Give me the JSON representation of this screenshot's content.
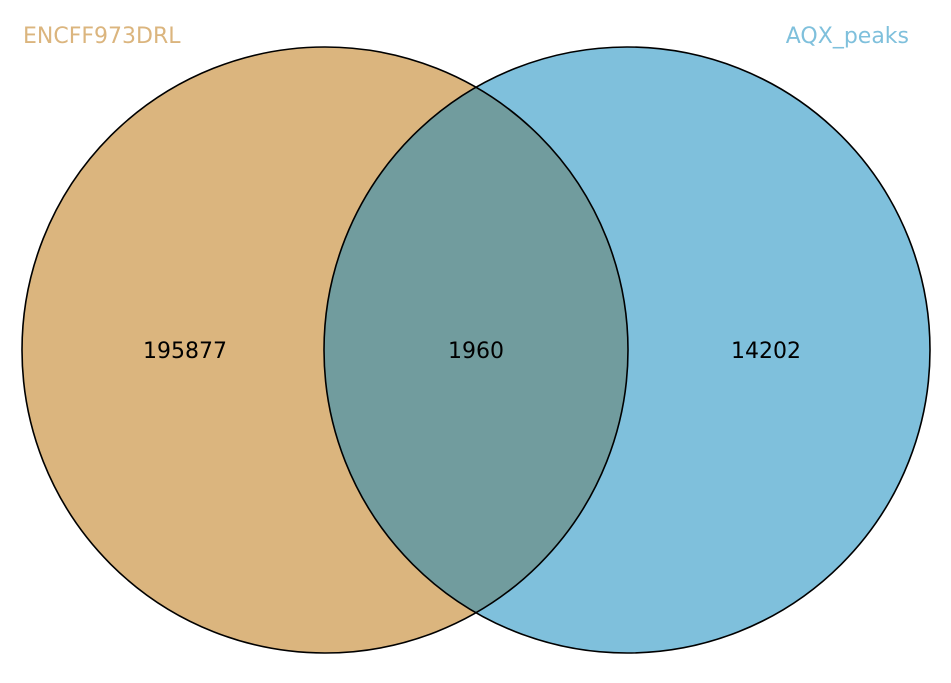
{
  "diagram": {
    "type": "venn2",
    "sets": [
      {
        "label": "ENCFF973DRL",
        "color": "#dbb57e",
        "label_color": "#dbb57e"
      },
      {
        "label": "AQX_peaks",
        "color": "#7fc0dc",
        "label_color": "#7fc0dc"
      }
    ],
    "counts": {
      "only_a": "195877",
      "intersection": "1960",
      "only_b": "14202"
    },
    "overlap_color": "#719c9e",
    "outline_color": "#000000"
  }
}
